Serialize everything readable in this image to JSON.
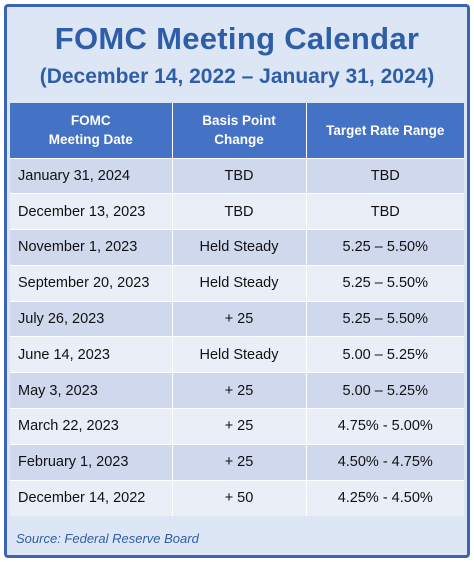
{
  "title": "FOMC Meeting Calendar",
  "subtitle": "(December 14, 2022 – January 31, 2024)",
  "columns": {
    "date_line1": "FOMC",
    "date_line2": "Meeting Date",
    "change_line1": "Basis Point",
    "change_line2": "Change",
    "range": "Target Rate Range"
  },
  "rows": [
    {
      "date": "January 31, 2024",
      "change": "TBD",
      "range": "TBD"
    },
    {
      "date": "December 13, 2023",
      "change": "TBD",
      "range": "TBD"
    },
    {
      "date": "November 1, 2023",
      "change": "Held Steady",
      "range": "5.25 – 5.50%"
    },
    {
      "date": "September 20, 2023",
      "change": "Held Steady",
      "range": "5.25 – 5.50%"
    },
    {
      "date": "July 26, 2023",
      "change": "+ 25",
      "range": "5.25 – 5.50%"
    },
    {
      "date": "June 14, 2023",
      "change": "Held Steady",
      "range": "5.00 – 5.25%"
    },
    {
      "date": "May 3, 2023",
      "change": "+ 25",
      "range": "5.00 – 5.25%"
    },
    {
      "date": "March 22, 2023",
      "change": "+ 25",
      "range": "4.75% - 5.00%"
    },
    {
      "date": "February 1, 2023",
      "change": "+ 25",
      "range": "4.50% - 4.75%"
    },
    {
      "date": "December 14, 2022",
      "change": "+ 50",
      "range": "4.25% - 4.50%"
    }
  ],
  "source": "Source: Federal Reserve Board",
  "colors": {
    "accent": "#2f5ea8",
    "header_bg": "#4472c4",
    "row_dark": "#cfd8ec",
    "row_light": "#e9eef7",
    "panel_bg": "#dde6f4"
  }
}
